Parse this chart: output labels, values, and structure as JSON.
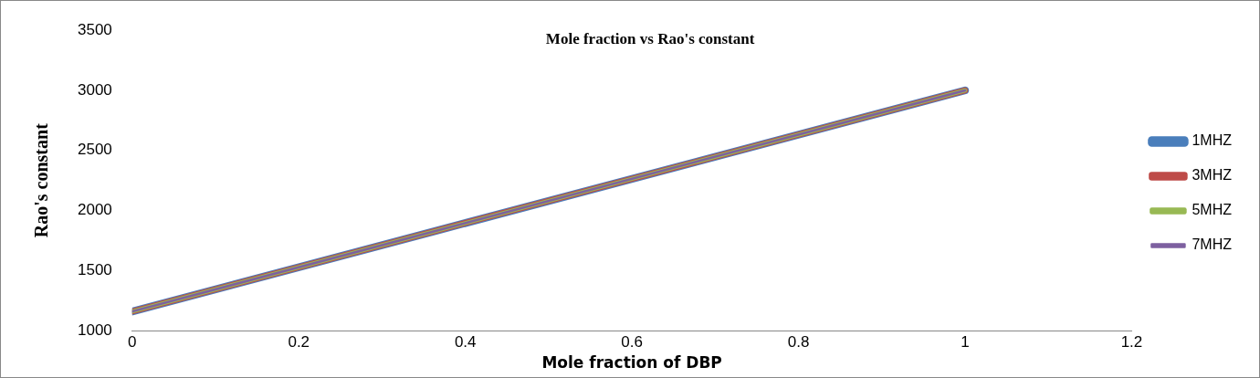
{
  "chart_data": {
    "type": "line",
    "title": "Mole fraction vs Rao's constant",
    "xlabel": "Mole fraction of DBP",
    "ylabel": "Rao's constant",
    "x": [
      0,
      1
    ],
    "series": [
      {
        "name": "1MHZ",
        "color": "#4a7ebb",
        "values": [
          1160,
          3000
        ]
      },
      {
        "name": "3MHZ",
        "color": "#be4b48",
        "values": [
          1160,
          3000
        ]
      },
      {
        "name": "5MHZ",
        "color": "#98b954",
        "values": [
          1160,
          3000
        ]
      },
      {
        "name": "7MHZ",
        "color": "#7d60a0",
        "values": [
          1160,
          3000
        ]
      }
    ],
    "xlim": [
      0,
      1.2
    ],
    "xticks": [
      0,
      0.2,
      0.4,
      0.6,
      0.8,
      1,
      1.2
    ],
    "ylim": [
      1000,
      3500
    ],
    "yticks": [
      1000,
      1500,
      2000,
      2500,
      3000,
      3500
    ],
    "grid": false,
    "legend": "right",
    "marker": "none",
    "line_style": "solid"
  }
}
